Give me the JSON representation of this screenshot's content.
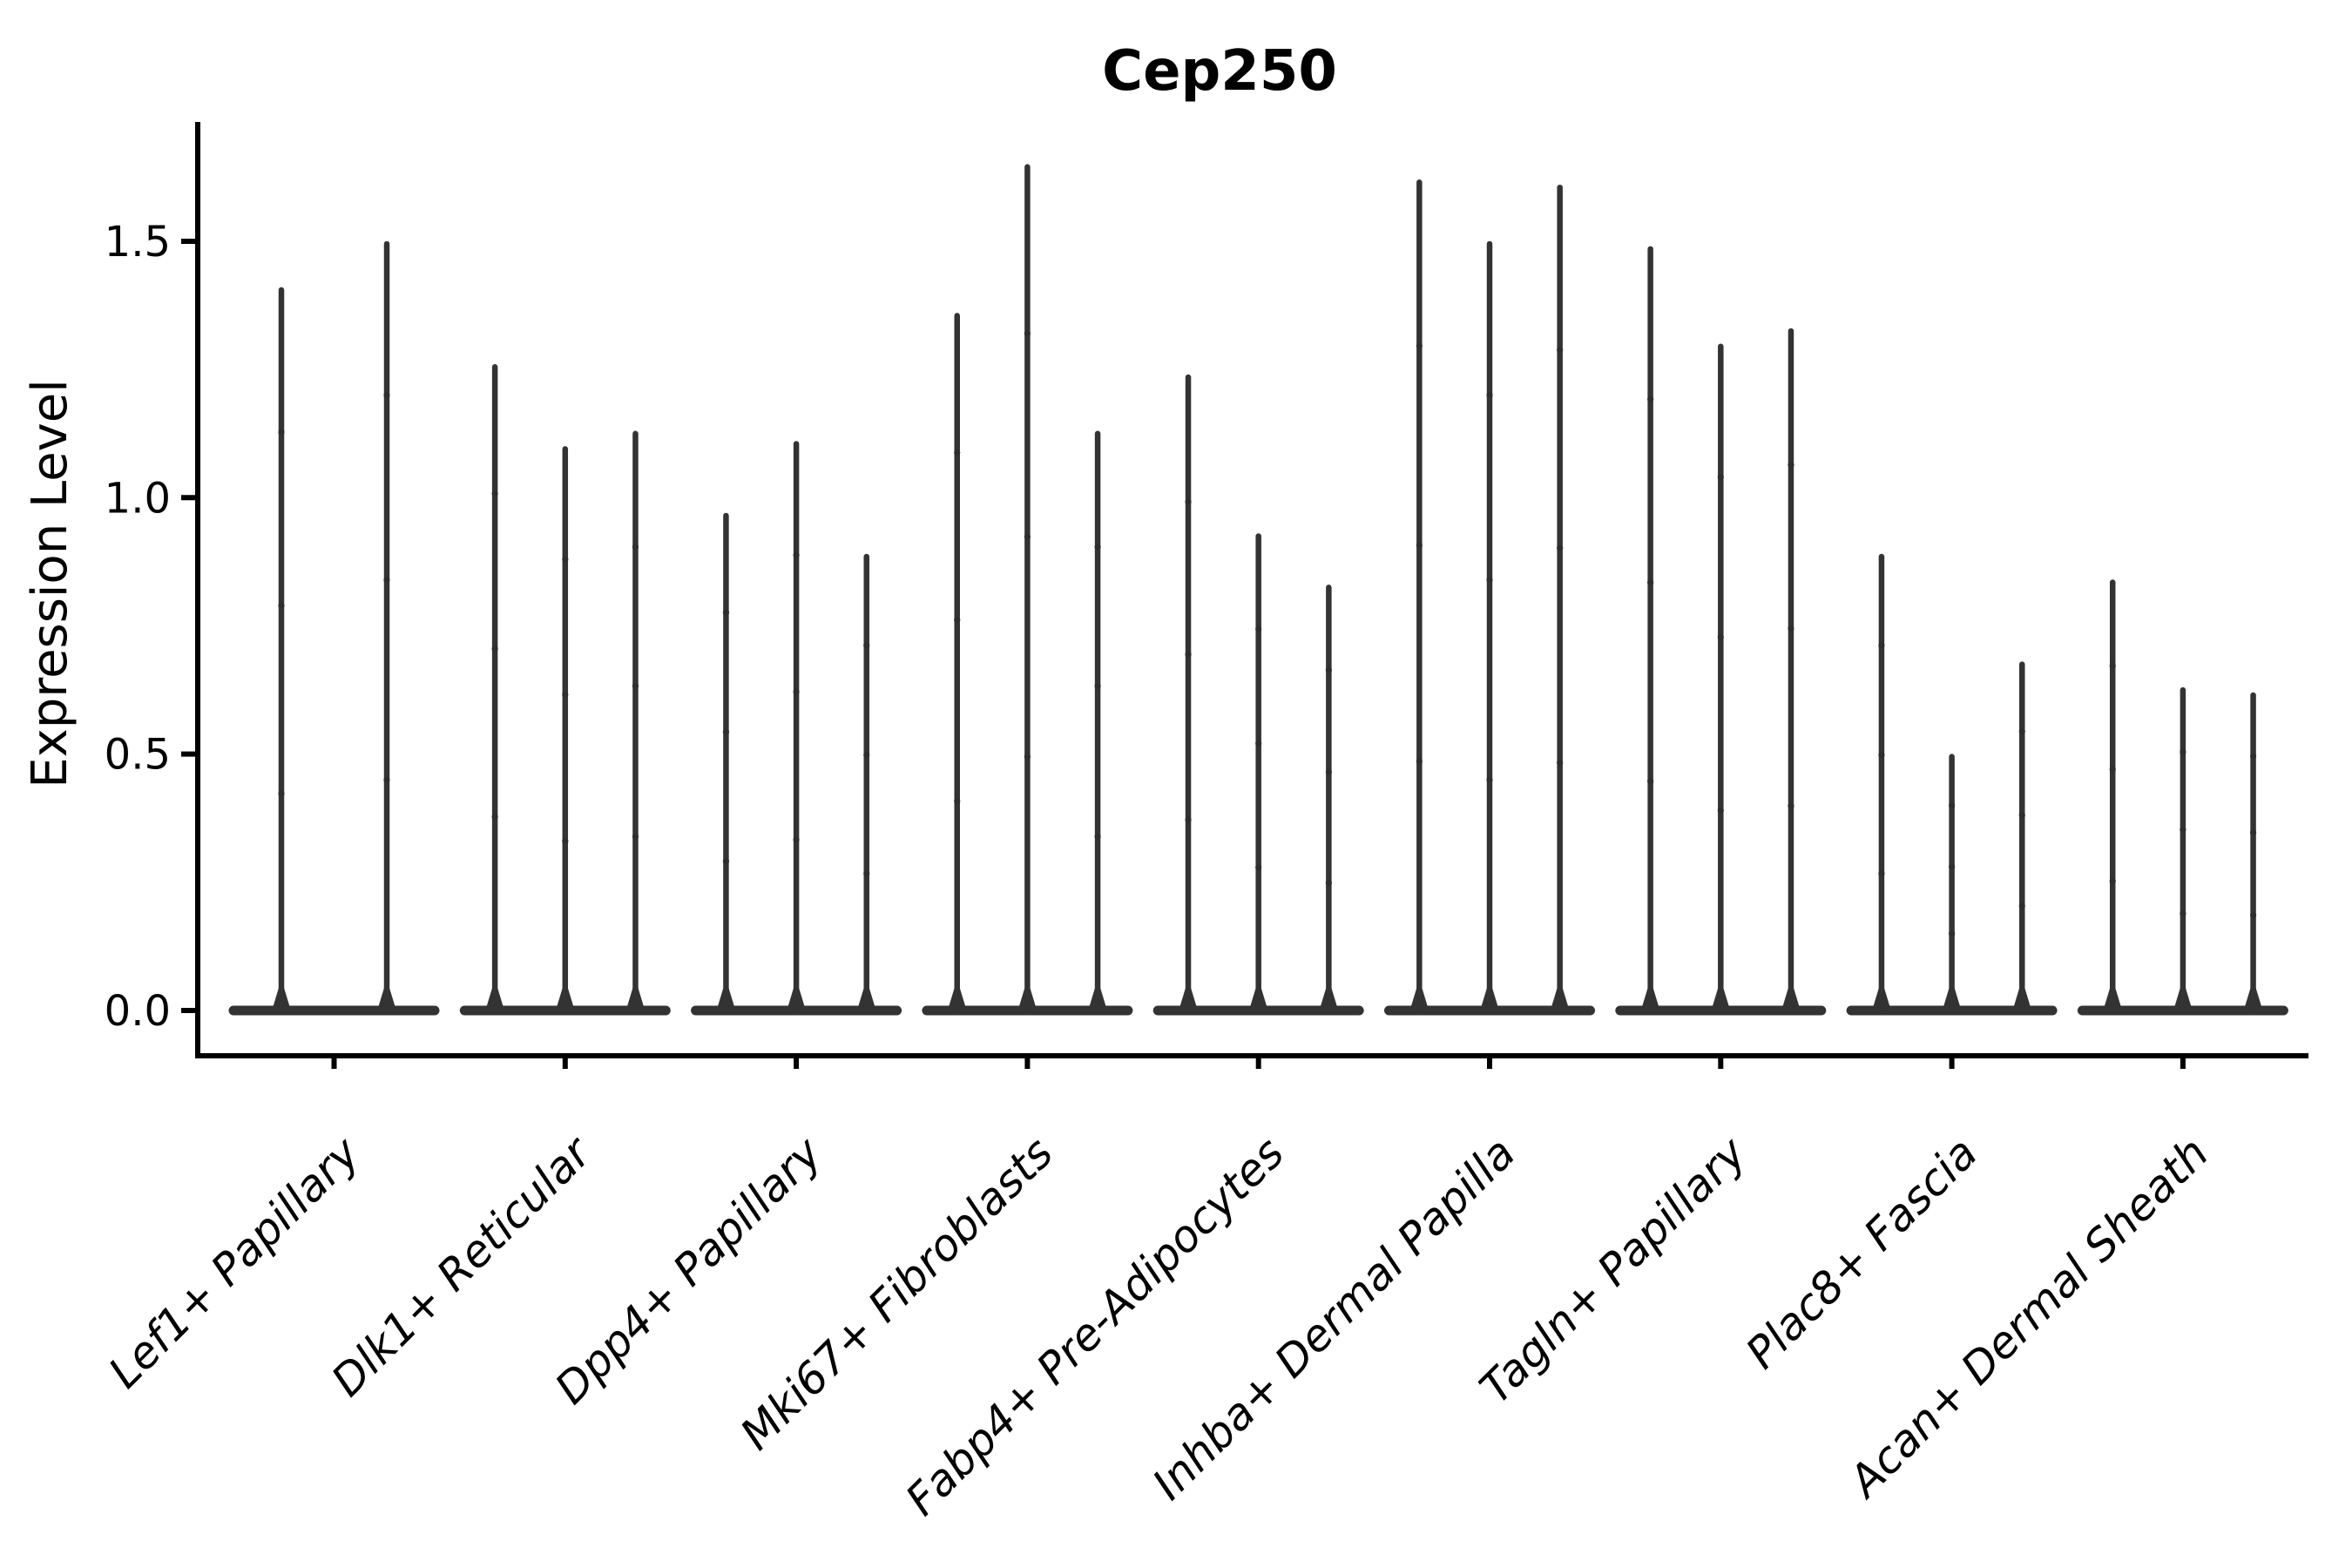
{
  "chart_data": {
    "type": "violin",
    "title": "Cep250",
    "ylabel": "Expression Level",
    "xlabel": "",
    "yticks": [
      0.0,
      0.5,
      1.0,
      1.5
    ],
    "ytick_labels": [
      "0.0",
      "0.5",
      "1.0",
      "1.5"
    ],
    "ylim": [
      -0.09,
      1.73
    ],
    "grid": false,
    "legend": false,
    "x_label_rotation_deg": 45,
    "categories": [
      "Lef1+ Papillary",
      "Dlk1+ Reticular",
      "Dpp4+ Papillary",
      "Mki67+ Fibroblasts",
      "Fabp4+ Pre-Adipocytes",
      "Inhba+ Dermal Papilla",
      "Tagln+ Papillary",
      "Plac8+ Fascia",
      "Acan+ Dermal Sheath"
    ],
    "groups": [
      {
        "category": "Lef1+ Papillary",
        "violin_maxima": [
          1.41,
          1.5
        ]
      },
      {
        "category": "Dlk1+ Reticular",
        "violin_maxima": [
          1.26,
          1.1,
          1.13
        ]
      },
      {
        "category": "Dpp4+ Papillary",
        "violin_maxima": [
          0.97,
          1.11,
          0.89
        ]
      },
      {
        "category": "Mki67+ Fibroblasts",
        "violin_maxima": [
          1.36,
          1.65,
          1.13
        ]
      },
      {
        "category": "Fabp4+ Pre-Adipocytes",
        "violin_maxima": [
          1.24,
          0.93,
          0.83
        ]
      },
      {
        "category": "Inhba+ Dermal Papilla",
        "violin_maxima": [
          1.62,
          1.5,
          1.61
        ]
      },
      {
        "category": "Tagln+ Papillary",
        "violin_maxima": [
          1.49,
          1.3,
          1.33
        ]
      },
      {
        "category": "Plac8+ Fascia",
        "violin_maxima": [
          0.89,
          0.5,
          0.68
        ]
      },
      {
        "category": "Acan+ Dermal Sheath",
        "violin_maxima": [
          0.84,
          0.63,
          0.62
        ]
      }
    ],
    "distribution_note": "Each violin's density mass is concentrated at expression 0 (wide flat base) with a thin spike reaching the maximum expression value.",
    "colors": {
      "violin": "#333333",
      "axis": "#000000",
      "text": "#000000",
      "background": "#ffffff"
    }
  }
}
